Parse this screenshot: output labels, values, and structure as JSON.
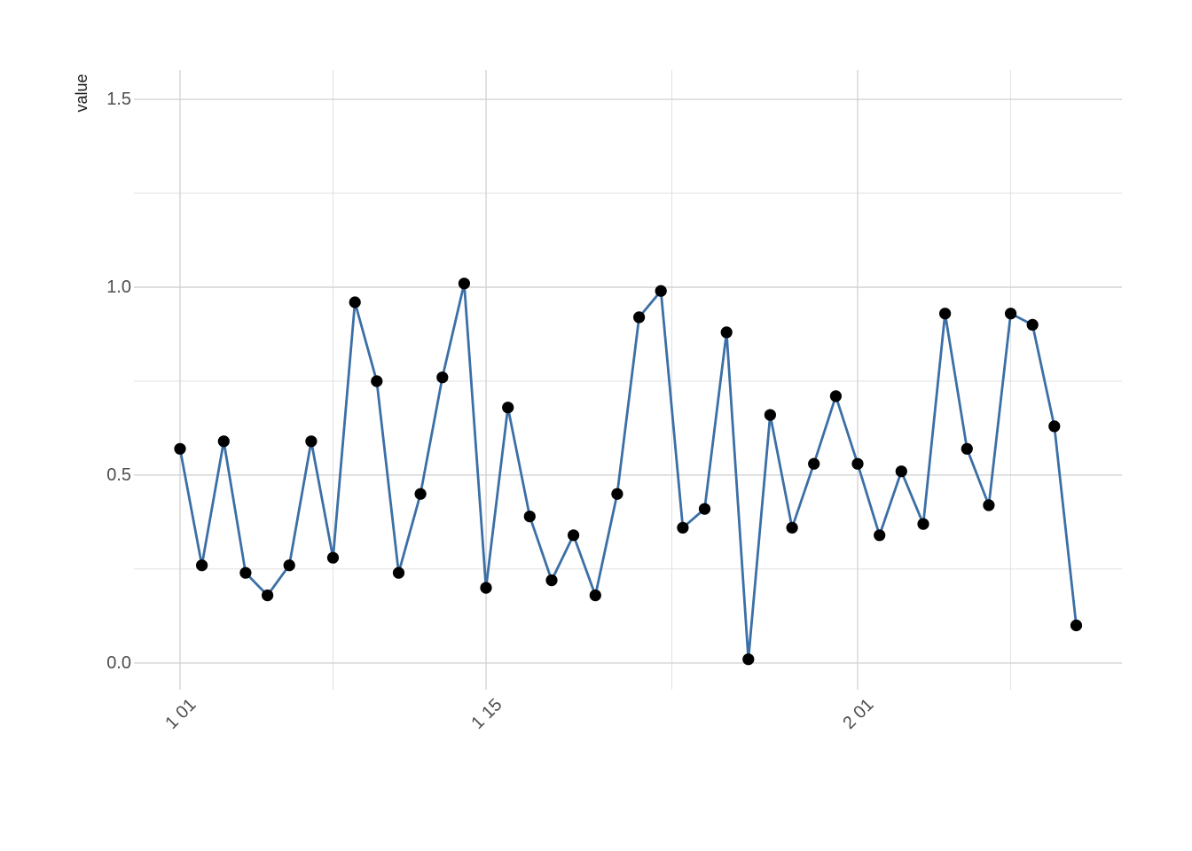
{
  "chart_data": {
    "type": "line",
    "title": "",
    "xlabel": "",
    "ylabel": "value",
    "x_unit": "day index, Jan 1 = 1",
    "x_days": [
      1,
      2,
      3,
      4,
      5,
      6,
      7,
      8,
      9,
      10,
      11,
      12,
      13,
      14,
      15,
      16,
      17,
      18,
      19,
      20,
      21,
      22,
      23,
      24,
      25,
      26,
      27,
      28,
      29,
      30,
      31,
      32,
      33,
      34,
      35,
      36,
      37,
      38,
      39,
      40,
      41,
      42
    ],
    "values": [
      0.57,
      0.26,
      0.59,
      0.24,
      0.18,
      0.26,
      0.59,
      0.28,
      0.96,
      0.75,
      0.24,
      0.45,
      0.76,
      1.01,
      0.2,
      0.68,
      0.39,
      0.22,
      0.34,
      0.18,
      0.45,
      0.92,
      0.99,
      0.36,
      0.41,
      0.88,
      0.01,
      0.66,
      0.36,
      0.53,
      0.71,
      0.53,
      0.34,
      0.51,
      0.37,
      0.93,
      0.57,
      0.42,
      0.93,
      0.9,
      0.63,
      0.1
    ],
    "x_ticks": [
      {
        "day": 1,
        "label": "1 01"
      },
      {
        "day": 15,
        "label": "1 15"
      },
      {
        "day": 32,
        "label": "2 01"
      }
    ],
    "x_minor_tick_days": [
      8,
      23.5,
      39
    ],
    "y_ticks": [
      {
        "value": 0.0,
        "label": "0.0"
      },
      {
        "value": 0.5,
        "label": "0.5"
      },
      {
        "value": 1.0,
        "label": "1.0"
      },
      {
        "value": 1.5,
        "label": "1.5"
      }
    ],
    "y_minor_ticks": [
      0.25,
      0.75,
      1.25
    ],
    "x_domain": [
      -1.11,
      44.09
    ],
    "y_domain": [
      -0.071,
      1.578
    ],
    "grid": "major+minor",
    "legend": "none",
    "marker": "filled-circle",
    "colors": {
      "line": "#3B6FA6",
      "point": "#000000",
      "grid_major": "#D4D4D4",
      "grid_minor": "#E0E0E0",
      "tick_label": "#4D4D4D",
      "axis_title": "#1A1A1A",
      "background": "#FFFFFF"
    }
  }
}
